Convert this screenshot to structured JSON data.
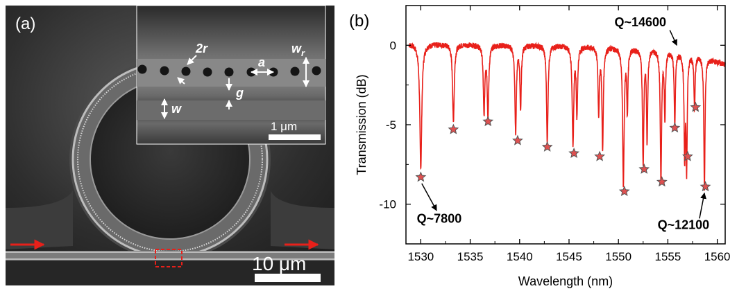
{
  "panel_a": {
    "label": "(a)",
    "scale_bar_main": "10 μm",
    "scale_bar_inset": "1 μm",
    "labels": {
      "two_r": "2r",
      "w_r": "w",
      "w_r_sub": "r",
      "a": "a",
      "g": "g",
      "w": "w"
    },
    "colors": {
      "arrow": "#e8201a",
      "highlight": "#e8201a",
      "scale": "#ffffff"
    }
  },
  "panel_b": {
    "label": "(b)",
    "annotations": {
      "q1": "Q~7800",
      "q2": "Q~14600",
      "q3": "Q~12100"
    },
    "colors": {
      "trace": "#e8201a",
      "marker_fill": "#e05050",
      "marker_stroke": "#555555"
    }
  },
  "chart_data": {
    "type": "line",
    "title": "",
    "xlabel": "Wavelength (nm)",
    "ylabel": "Transmission (dB)",
    "xlim": [
      1528.5,
      1560.8
    ],
    "ylim": [
      -12.5,
      2.5
    ],
    "xticks": [
      1530,
      1535,
      1540,
      1545,
      1550,
      1555,
      1560
    ],
    "yticks": [
      0,
      -5,
      -10
    ],
    "ytick_labels": [
      "0",
      "-5",
      "-10"
    ],
    "series": [
      {
        "baseline": [
          [
            1528.8,
            0.1
          ],
          [
            1545,
            0.0
          ],
          [
            1554,
            -0.2
          ],
          [
            1558,
            -0.6
          ],
          [
            1560.8,
            -1.2
          ]
        ],
        "dips": [
          {
            "x": 1530.0,
            "depth": -7.8,
            "width": 0.12
          },
          {
            "x": 1533.3,
            "depth": -4.9,
            "width": 0.1
          },
          {
            "x": 1536.4,
            "depth": -4.3,
            "width": 0.09
          },
          {
            "x": 1536.8,
            "depth": -4.5,
            "width": 0.09
          },
          {
            "x": 1539.6,
            "depth": -5.5,
            "width": 0.09
          },
          {
            "x": 1540.1,
            "depth": -4.0,
            "width": 0.08
          },
          {
            "x": 1542.8,
            "depth": -6.1,
            "width": 0.09
          },
          {
            "x": 1545.4,
            "depth": -6.3,
            "width": 0.09
          },
          {
            "x": 1545.8,
            "depth": -4.3,
            "width": 0.08
          },
          {
            "x": 1548.0,
            "depth": -4.1,
            "width": 0.08
          },
          {
            "x": 1548.4,
            "depth": -6.5,
            "width": 0.08
          },
          {
            "x": 1550.5,
            "depth": -8.6,
            "width": 0.09
          },
          {
            "x": 1550.9,
            "depth": -4.0,
            "width": 0.07
          },
          {
            "x": 1552.5,
            "depth": -7.3,
            "width": 0.08
          },
          {
            "x": 1552.9,
            "depth": -5.8,
            "width": 0.07
          },
          {
            "x": 1554.3,
            "depth": -8.2,
            "width": 0.08
          },
          {
            "x": 1554.7,
            "depth": -4.2,
            "width": 0.07
          },
          {
            "x": 1555.7,
            "depth": -4.7,
            "width": 0.07
          },
          {
            "x": 1556.7,
            "depth": -6.4,
            "width": 0.07
          },
          {
            "x": 1556.9,
            "depth": -7.0,
            "width": 0.07
          },
          {
            "x": 1557.7,
            "depth": -3.4,
            "width": 0.07
          },
          {
            "x": 1558.7,
            "depth": -8.3,
            "width": 0.07
          }
        ]
      }
    ],
    "markers": [
      {
        "x": 1530.0,
        "y": -8.3
      },
      {
        "x": 1533.3,
        "y": -5.3
      },
      {
        "x": 1536.8,
        "y": -4.8
      },
      {
        "x": 1539.8,
        "y": -6.0
      },
      {
        "x": 1542.8,
        "y": -6.4
      },
      {
        "x": 1545.5,
        "y": -6.8
      },
      {
        "x": 1548.1,
        "y": -7.0
      },
      {
        "x": 1550.6,
        "y": -9.2
      },
      {
        "x": 1552.6,
        "y": -7.8
      },
      {
        "x": 1554.4,
        "y": -8.6
      },
      {
        "x": 1555.7,
        "y": -5.2
      },
      {
        "x": 1557.0,
        "y": -7.0
      },
      {
        "x": 1557.8,
        "y": -3.9
      },
      {
        "x": 1558.8,
        "y": -8.9
      }
    ],
    "grid": false
  }
}
